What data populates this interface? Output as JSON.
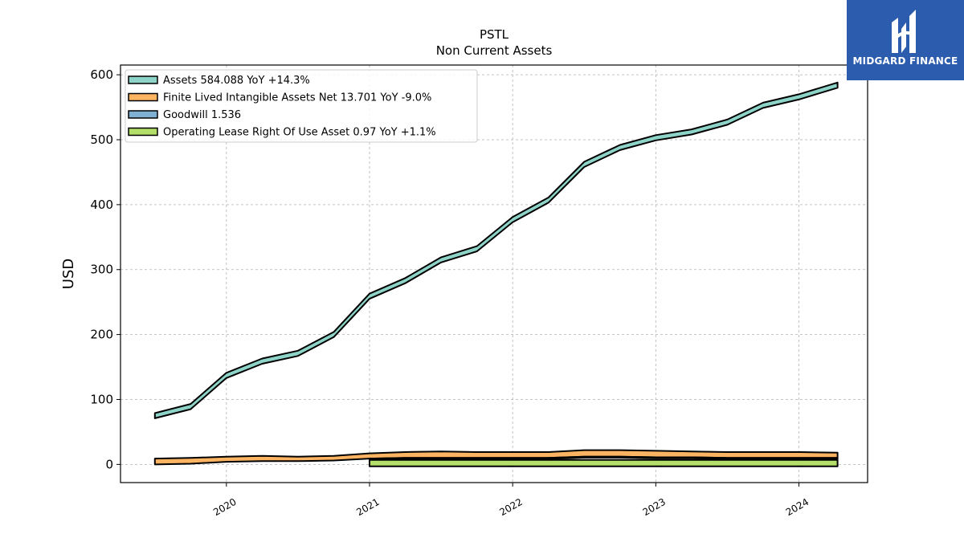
{
  "logo": {
    "text": "MIDGARD FINANCE",
    "background": "#2b5cad"
  },
  "chart_data": {
    "type": "area",
    "title": "PSTL",
    "subtitle": "Non Current  Assets",
    "ylabel": "USD",
    "xlabel": "",
    "ylim": [
      -28,
      615
    ],
    "xlim": [
      2019.26,
      2024.48
    ],
    "yticks": [
      0,
      100,
      200,
      300,
      400,
      500,
      600
    ],
    "xticks": [
      {
        "value": 2020,
        "label": "2020"
      },
      {
        "value": 2021,
        "label": "2021"
      },
      {
        "value": 2022,
        "label": "2022"
      },
      {
        "value": 2023,
        "label": "2023"
      },
      {
        "value": 2024,
        "label": "2024"
      }
    ],
    "grid": true,
    "legend_position": "top-left",
    "series": [
      {
        "name": "Assets",
        "legend": "Assets  584.088 YoY +14.3%",
        "color": "#8dd3c7",
        "x": [
          2019.5,
          2019.75,
          2020.0,
          2020.25,
          2020.5,
          2020.75,
          2021.0,
          2021.25,
          2021.5,
          2021.75,
          2022.0,
          2022.25,
          2022.5,
          2022.75,
          2023.0,
          2023.25,
          2023.5,
          2023.75,
          2024.0,
          2024.27
        ],
        "upper": [
          79,
          93,
          141,
          163,
          175,
          204,
          263,
          287,
          319,
          336,
          381,
          411,
          466,
          492,
          507,
          516,
          531,
          557,
          570,
          588
        ],
        "lower": [
          71,
          85,
          133,
          155,
          167,
          196,
          255,
          279,
          311,
          328,
          373,
          403,
          458,
          484,
          499,
          508,
          523,
          549,
          562,
          580
        ]
      },
      {
        "name": "Finite Lived Intangible Assets Net",
        "legend": "Finite Lived Intangible Assets Net  13.701 YoY -9.0%",
        "color": "#fdb462",
        "x": [
          2019.5,
          2019.75,
          2020.0,
          2020.25,
          2020.5,
          2020.75,
          2021.0,
          2021.25,
          2021.5,
          2021.75,
          2022.0,
          2022.25,
          2022.5,
          2022.75,
          2023.0,
          2023.25,
          2023.5,
          2023.75,
          2024.0,
          2024.27
        ],
        "upper": [
          9,
          10,
          12,
          13,
          12,
          13,
          17,
          19,
          20,
          19,
          19,
          19,
          22,
          22,
          21,
          20,
          19,
          19,
          19,
          18
        ],
        "lower": [
          0,
          1,
          4,
          5,
          5,
          6,
          9,
          10,
          10,
          10,
          10,
          10,
          12,
          12,
          11,
          11,
          10,
          10,
          10,
          10
        ]
      },
      {
        "name": "Goodwill",
        "legend": "Goodwill  1.536",
        "color": "#80b1d3",
        "x": [
          2021.0,
          2021.25,
          2021.5,
          2021.75,
          2022.0,
          2022.25,
          2022.5,
          2022.75,
          2023.0,
          2023.25,
          2023.5,
          2023.75,
          2024.0,
          2024.27
        ],
        "upper": [
          9,
          10,
          10,
          10,
          10,
          10,
          12,
          12,
          11,
          11,
          10,
          10,
          10,
          10
        ],
        "lower": [
          7.5,
          8.5,
          8.5,
          8.5,
          8.5,
          8.5,
          10.5,
          10.5,
          9.5,
          9.5,
          8.5,
          8.5,
          8.5,
          8.5
        ]
      },
      {
        "name": "Operating Lease Right Of Use Asset",
        "legend": "Operating Lease Right Of Use Asset  0.97 YoY +1.1%",
        "color": "#b3de69",
        "x": [
          2021.0,
          2024.27
        ],
        "upper": [
          7,
          7
        ],
        "lower": [
          -3,
          -3
        ]
      }
    ]
  }
}
